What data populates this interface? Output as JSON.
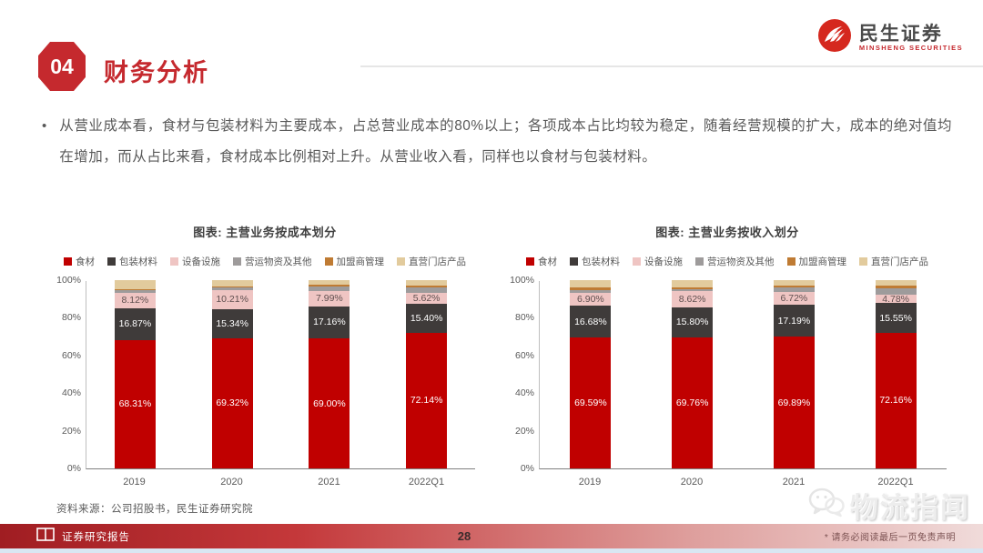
{
  "header": {
    "badge": "04",
    "title": "财务分析"
  },
  "logo": {
    "name_cn": "民生证券",
    "name_en": "MINSHENG SECURITIES",
    "brand_color": "#D5281E"
  },
  "bullet": {
    "marker": "•",
    "text": "从营业成本看，食材与包装材料为主要成本，占总营业成本的80%以上；各项成本占比均较为稳定，随着经营规模的扩大，成本的绝对值均在增加，而从占比来看，食材成本比例相对上升。从营业收入看，同样也以食材与包装材料。"
  },
  "chart_data": [
    {
      "type": "bar",
      "stacked": true,
      "title": "图表: 主营业务按成本划分",
      "categories": [
        "2019",
        "2020",
        "2021",
        "2022Q1"
      ],
      "series": [
        {
          "name": "食材",
          "color": "#C00000",
          "label_color": "#ffffff",
          "labeled": true,
          "values": [
            68.31,
            69.32,
            69.0,
            72.14
          ]
        },
        {
          "name": "包装材料",
          "color": "#3F3B3A",
          "label_color": "#ffffff",
          "labeled": true,
          "values": [
            16.87,
            15.34,
            17.16,
            15.4
          ]
        },
        {
          "name": "设备设施",
          "color": "#EFC5C3",
          "label_color": "#5f4f4f",
          "labeled": true,
          "values": [
            8.12,
            10.21,
            7.99,
            5.62
          ]
        },
        {
          "name": "营运物资及其他",
          "color": "#9E9B9B",
          "labeled": false,
          "values": [
            1.2,
            1.6,
            2.5,
            3.2
          ]
        },
        {
          "name": "加盟商管理",
          "color": "#BF7B33",
          "labeled": false,
          "values": [
            0.8,
            0.4,
            0.9,
            0.9
          ]
        },
        {
          "name": "直营门店产品",
          "color": "#E2CB9D",
          "labeled": false,
          "values": [
            4.7,
            3.13,
            2.45,
            2.74
          ]
        }
      ],
      "ylim": [
        0,
        100
      ],
      "ytick_step": 20,
      "ytick_suffix": "%",
      "grid": false,
      "legend_position": "top"
    },
    {
      "type": "bar",
      "stacked": true,
      "title": "图表: 主营业务按收入划分",
      "categories": [
        "2019",
        "2020",
        "2021",
        "2022Q1"
      ],
      "series": [
        {
          "name": "食材",
          "color": "#C00000",
          "label_color": "#ffffff",
          "labeled": true,
          "values": [
            69.59,
            69.76,
            69.89,
            72.16
          ]
        },
        {
          "name": "包装材料",
          "color": "#3F3B3A",
          "label_color": "#ffffff",
          "labeled": true,
          "values": [
            16.68,
            15.8,
            17.19,
            15.55
          ]
        },
        {
          "name": "设备设施",
          "color": "#EFC5C3",
          "label_color": "#5f4f4f",
          "labeled": true,
          "values": [
            6.9,
            8.62,
            6.72,
            4.78
          ]
        },
        {
          "name": "营运物资及其他",
          "color": "#9E9B9B",
          "labeled": false,
          "values": [
            1.3,
            1.2,
            2.4,
            3.3
          ]
        },
        {
          "name": "加盟商管理",
          "color": "#BF7B33",
          "labeled": false,
          "values": [
            1.5,
            0.6,
            1.1,
            1.1
          ]
        },
        {
          "name": "直营门店产品",
          "color": "#E2CB9D",
          "labeled": false,
          "values": [
            4.03,
            4.02,
            2.7,
            3.11
          ]
        }
      ],
      "ylim": [
        0,
        100
      ],
      "ytick_step": 20,
      "ytick_suffix": "%",
      "grid": false,
      "legend_position": "top"
    }
  ],
  "footer": {
    "source": "资料来源：公司招股书，民生证券研究院"
  },
  "bottom_bar": {
    "left_label": "证券研究报告",
    "page_number": "28",
    "right_label": "* 请务必阅读最后一页免责声明"
  },
  "watermark": {
    "text": "物流指闻"
  }
}
